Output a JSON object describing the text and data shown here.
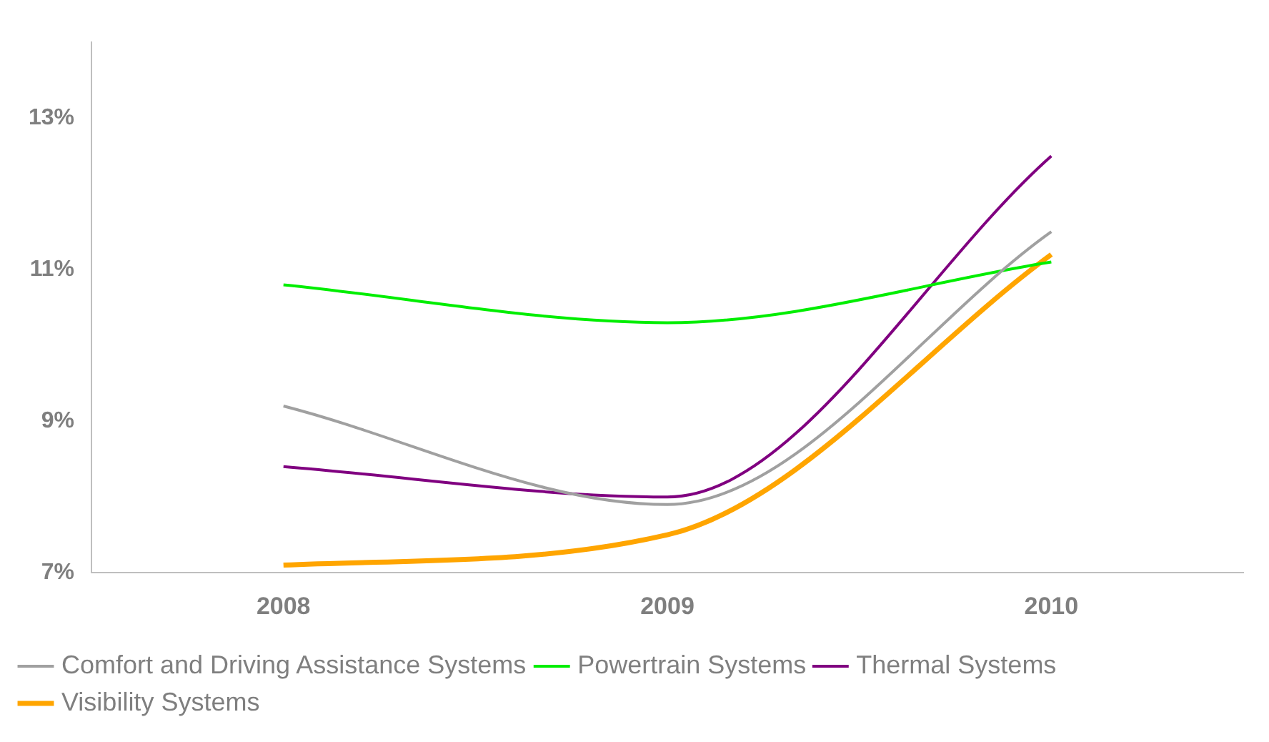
{
  "chart_data": {
    "type": "line",
    "categories": [
      "2008",
      "2009",
      "2010"
    ],
    "series": [
      {
        "name": "Comfort and Driving Assistance Systems",
        "color": "#a0a0a0",
        "values": [
          9.2,
          7.9,
          11.5
        ]
      },
      {
        "name": "Powertrain Systems",
        "color": "#00ee00",
        "values": [
          10.8,
          10.3,
          11.1
        ]
      },
      {
        "name": "Thermal Systems",
        "color": "#800080",
        "values": [
          8.4,
          8.0,
          12.5
        ]
      },
      {
        "name": "Visibility Systems",
        "color": "#ffa500",
        "values": [
          7.1,
          7.5,
          11.2
        ]
      }
    ],
    "ylim": [
      7,
      14
    ],
    "yticks": [
      {
        "value": 7,
        "label": "7%"
      },
      {
        "value": 9,
        "label": "9%"
      },
      {
        "value": 11,
        "label": "11%"
      },
      {
        "value": 13,
        "label": "13%"
      }
    ],
    "grid": false,
    "legend": "bottom",
    "marker": "none",
    "line_style": "solid"
  }
}
